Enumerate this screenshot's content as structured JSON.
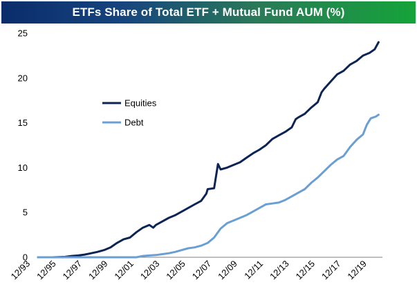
{
  "chart_data": {
    "type": "line",
    "title": "ETFs Share of Total ETF + Mutual Fund AUM (%)",
    "xlabel": "",
    "ylabel": "",
    "ylim": [
      0,
      25
    ],
    "yticks": [
      "0",
      "5",
      "10",
      "15",
      "20",
      "25"
    ],
    "x_tick_labels": [
      "12/93",
      "12/95",
      "12/97",
      "12/99",
      "12/01",
      "12/03",
      "12/05",
      "12/07",
      "12/09",
      "12/11",
      "12/13",
      "12/15",
      "12/17",
      "12/19"
    ],
    "x_tick_years": [
      1993,
      1995,
      1997,
      1999,
      2001,
      2003,
      2005,
      2007,
      2009,
      2011,
      2013,
      2015,
      2017,
      2019
    ],
    "xlim": [
      1993.9,
      2020.5
    ],
    "legend_position": "center-left",
    "series": [
      {
        "name": "Equities",
        "color": "#0c2455",
        "points": [
          [
            1993.9,
            0.0
          ],
          [
            1995.0,
            0.0
          ],
          [
            1996.0,
            0.05
          ],
          [
            1996.5,
            0.15
          ],
          [
            1997.0,
            0.2
          ],
          [
            1997.5,
            0.3
          ],
          [
            1998.0,
            0.45
          ],
          [
            1998.5,
            0.6
          ],
          [
            1999.0,
            0.8
          ],
          [
            1999.5,
            1.1
          ],
          [
            2000.0,
            1.6
          ],
          [
            2000.5,
            2.0
          ],
          [
            2001.0,
            2.2
          ],
          [
            2001.5,
            2.8
          ],
          [
            2002.0,
            3.3
          ],
          [
            2002.5,
            3.6
          ],
          [
            2002.8,
            3.3
          ],
          [
            2003.0,
            3.6
          ],
          [
            2003.5,
            4.0
          ],
          [
            2004.0,
            4.4
          ],
          [
            2004.5,
            4.7
          ],
          [
            2005.0,
            5.1
          ],
          [
            2005.5,
            5.5
          ],
          [
            2006.0,
            5.9
          ],
          [
            2006.5,
            6.3
          ],
          [
            2006.9,
            7.1
          ],
          [
            2007.0,
            7.6
          ],
          [
            2007.5,
            7.7
          ],
          [
            2007.8,
            10.4
          ],
          [
            2008.0,
            9.8
          ],
          [
            2008.5,
            10.0
          ],
          [
            2009.0,
            10.3
          ],
          [
            2009.5,
            10.6
          ],
          [
            2010.0,
            11.1
          ],
          [
            2010.5,
            11.6
          ],
          [
            2011.0,
            12.0
          ],
          [
            2011.5,
            12.5
          ],
          [
            2012.0,
            13.2
          ],
          [
            2012.5,
            13.6
          ],
          [
            2013.0,
            14.0
          ],
          [
            2013.5,
            14.5
          ],
          [
            2013.8,
            15.4
          ],
          [
            2014.0,
            15.6
          ],
          [
            2014.5,
            16.0
          ],
          [
            2015.0,
            16.7
          ],
          [
            2015.5,
            17.3
          ],
          [
            2015.8,
            18.4
          ],
          [
            2016.0,
            18.8
          ],
          [
            2016.5,
            19.6
          ],
          [
            2017.0,
            20.4
          ],
          [
            2017.5,
            20.8
          ],
          [
            2018.0,
            21.5
          ],
          [
            2018.5,
            21.9
          ],
          [
            2019.0,
            22.5
          ],
          [
            2019.5,
            22.8
          ],
          [
            2019.9,
            23.2
          ],
          [
            2020.2,
            24.0
          ]
        ]
      },
      {
        "name": "Debt",
        "color": "#6a9fd3",
        "points": [
          [
            1993.9,
            0.0
          ],
          [
            2001.5,
            0.0
          ],
          [
            2002.0,
            0.15
          ],
          [
            2002.5,
            0.2
          ],
          [
            2003.0,
            0.25
          ],
          [
            2003.5,
            0.35
          ],
          [
            2004.0,
            0.45
          ],
          [
            2004.5,
            0.6
          ],
          [
            2005.0,
            0.8
          ],
          [
            2005.5,
            1.0
          ],
          [
            2006.0,
            1.1
          ],
          [
            2006.5,
            1.3
          ],
          [
            2007.0,
            1.6
          ],
          [
            2007.5,
            2.2
          ],
          [
            2008.0,
            3.2
          ],
          [
            2008.5,
            3.8
          ],
          [
            2009.0,
            4.1
          ],
          [
            2009.5,
            4.4
          ],
          [
            2010.0,
            4.7
          ],
          [
            2010.5,
            5.1
          ],
          [
            2011.0,
            5.5
          ],
          [
            2011.5,
            5.9
          ],
          [
            2012.0,
            6.0
          ],
          [
            2012.5,
            6.1
          ],
          [
            2013.0,
            6.4
          ],
          [
            2013.5,
            6.8
          ],
          [
            2014.0,
            7.2
          ],
          [
            2014.5,
            7.6
          ],
          [
            2015.0,
            8.3
          ],
          [
            2015.5,
            8.9
          ],
          [
            2016.0,
            9.6
          ],
          [
            2016.5,
            10.3
          ],
          [
            2017.0,
            10.9
          ],
          [
            2017.5,
            11.3
          ],
          [
            2018.0,
            12.3
          ],
          [
            2018.5,
            13.1
          ],
          [
            2019.0,
            13.7
          ],
          [
            2019.3,
            14.8
          ],
          [
            2019.6,
            15.5
          ],
          [
            2020.0,
            15.7
          ],
          [
            2020.2,
            15.9
          ]
        ]
      }
    ]
  }
}
